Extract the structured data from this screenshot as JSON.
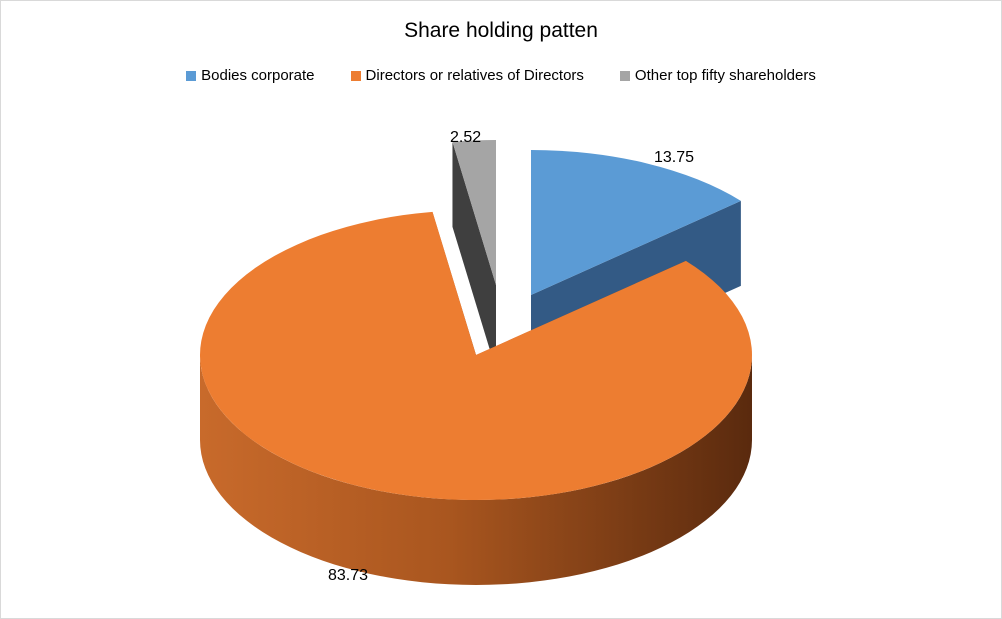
{
  "chart_data": {
    "type": "pie",
    "style": "3d-exploded",
    "title": "Share holding patten",
    "legend_position": "top",
    "slices": [
      {
        "name": "Bodies corporate",
        "value": 13.75,
        "label": "13.75",
        "color": "#5b9bd5"
      },
      {
        "name": "Directors or relatives of Directors",
        "value": 83.73,
        "label": "83.73",
        "color": "#ed7d31"
      },
      {
        "name": "Other top fifty shareholders",
        "value": 2.52,
        "label": "2.52",
        "color": "#a5a5a5"
      }
    ]
  }
}
